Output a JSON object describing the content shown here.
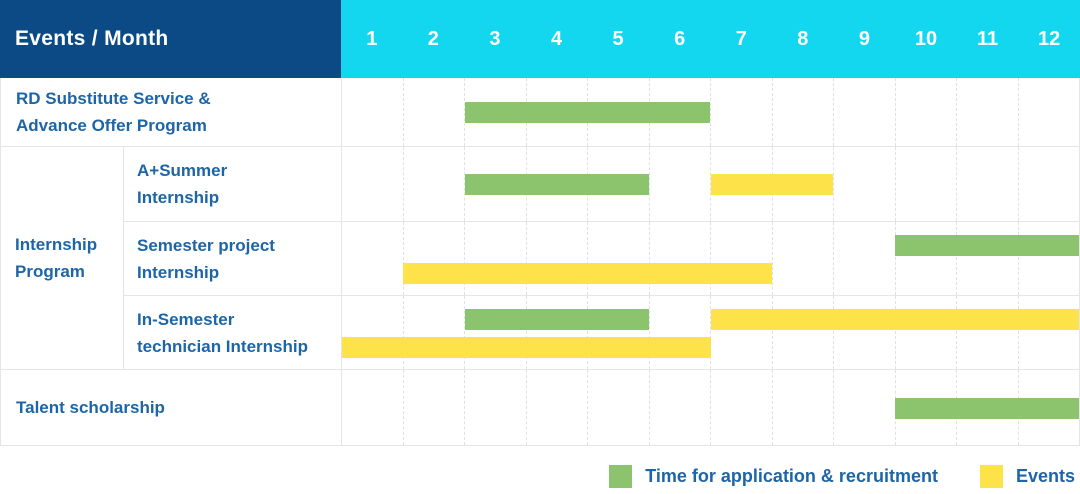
{
  "chart_data": {
    "type": "bar",
    "variant": "gantt",
    "title": "Events / Month",
    "months": [
      "1",
      "2",
      "3",
      "4",
      "5",
      "6",
      "7",
      "8",
      "9",
      "10",
      "11",
      "12"
    ],
    "x_range": [
      1,
      12
    ],
    "grid": "dashed-vertical-month-lines",
    "legend_position": "bottom-right",
    "legend": [
      {
        "key": "green",
        "label": "Time for application & recruitment"
      },
      {
        "key": "yellow",
        "label": "Events"
      }
    ],
    "groups": [
      {
        "label_lines": null,
        "rows": [
          {
            "label_lines": [
              "RD Substitute Service &",
              "Advance Offer Program"
            ],
            "lines": 1,
            "bars": [
              {
                "type": "green",
                "start_month": 3,
                "end_month": 6,
                "line": 0
              }
            ]
          }
        ]
      },
      {
        "label_lines": [
          "Internship",
          "Program"
        ],
        "rows": [
          {
            "label_lines": [
              "A+Summer",
              "Internship"
            ],
            "lines": 1,
            "bars": [
              {
                "type": "green",
                "start_month": 3,
                "end_month": 5,
                "line": 0
              },
              {
                "type": "yellow",
                "start_month": 7,
                "end_month": 8,
                "line": 0
              }
            ]
          },
          {
            "label_lines": [
              "Semester project",
              "Internship"
            ],
            "lines": 2,
            "bars": [
              {
                "type": "green",
                "start_month": 10,
                "end_month": 12,
                "line": 0
              },
              {
                "type": "yellow",
                "start_month": 2,
                "end_month": 7,
                "line": 1
              }
            ]
          },
          {
            "label_lines": [
              "In-Semester",
              "technician Internship"
            ],
            "lines": 2,
            "bars": [
              {
                "type": "green",
                "start_month": 3,
                "end_month": 5,
                "line": 0
              },
              {
                "type": "yellow",
                "start_month": 7,
                "end_month": 12,
                "line": 0
              },
              {
                "type": "yellow",
                "start_month": 1,
                "end_month": 6,
                "line": 1
              }
            ]
          }
        ]
      },
      {
        "label_lines": null,
        "rows": [
          {
            "label_lines": [
              "Talent scholarship"
            ],
            "lines": 1,
            "bars": [
              {
                "type": "green",
                "start_month": 10,
                "end_month": 12,
                "line": 0
              }
            ]
          }
        ]
      }
    ],
    "colors": {
      "header_bg": "#0b4a85",
      "months_bg": "#12d7ee",
      "green": "#8bc46d",
      "yellow": "#fee24a",
      "label_text": "#1e65a7",
      "header_text": "#ffffff",
      "grid_line": "#e5e5e5"
    }
  }
}
